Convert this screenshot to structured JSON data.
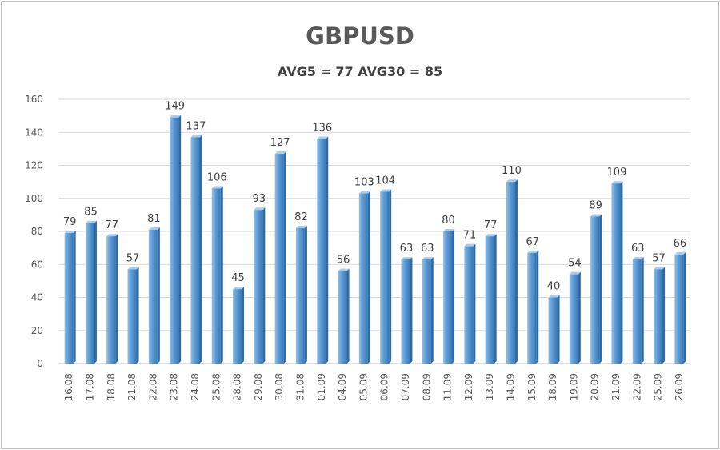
{
  "chart_data": {
    "type": "bar",
    "title": "GBPUSD",
    "subtitle": "AVG5 = 77 AVG30 = 85",
    "xlabel": "",
    "ylabel": "",
    "ylim": [
      0,
      160
    ],
    "yticks": [
      0,
      20,
      40,
      60,
      80,
      100,
      120,
      140,
      160
    ],
    "grid": true,
    "legend": "none",
    "bar_color": "#5b9bd5",
    "categories": [
      "16.08",
      "17.08",
      "18.08",
      "21.08",
      "22.08",
      "23.08",
      "24.08",
      "25.08",
      "28.08",
      "29.08",
      "30.08",
      "31.08",
      "01.09",
      "04.09",
      "05.09",
      "06.09",
      "07.09",
      "08.09",
      "11.09",
      "12.09",
      "13.09",
      "14.09",
      "15.09",
      "18.09",
      "19.09",
      "20.09",
      "21.09",
      "22.09",
      "25.09",
      "26.09"
    ],
    "values": [
      79,
      85,
      77,
      57,
      81,
      149,
      137,
      106,
      45,
      93,
      127,
      82,
      136,
      56,
      103,
      104,
      63,
      63,
      80,
      71,
      77,
      110,
      67,
      40,
      54,
      89,
      109,
      63,
      57,
      66
    ]
  }
}
